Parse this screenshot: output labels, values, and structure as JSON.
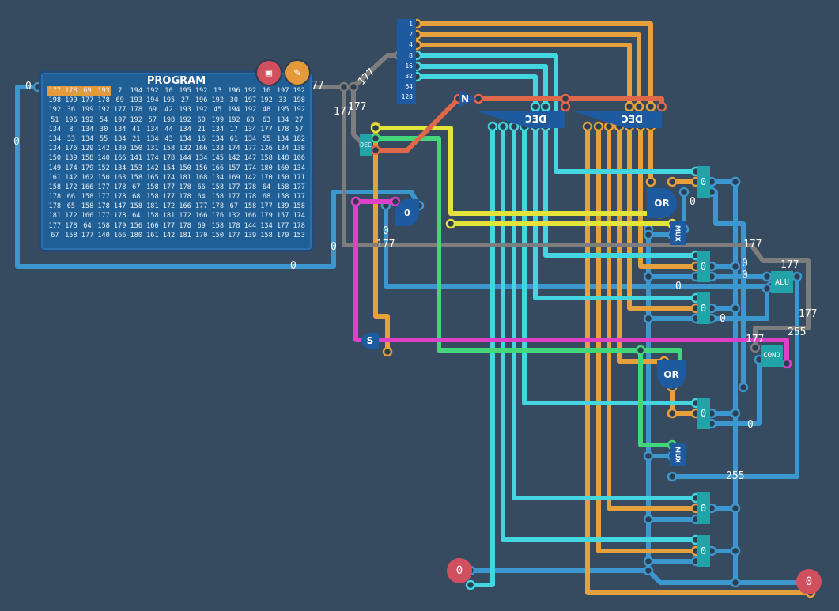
{
  "program": {
    "title": "PROGRAM",
    "highlighted_count": 4,
    "rows": [
      [
        177,
        178,
        69,
        193,
        7,
        194,
        192,
        10,
        195,
        192,
        13,
        196,
        192,
        16,
        197,
        192
      ],
      [
        198,
        199,
        177,
        178,
        69,
        193,
        194,
        195,
        27,
        196,
        192,
        30,
        197,
        192,
        33,
        198
      ],
      [
        192,
        36,
        199,
        192,
        177,
        178,
        69,
        42,
        193,
        192,
        45,
        194,
        192,
        48,
        195,
        192
      ],
      [
        51,
        196,
        192,
        54,
        197,
        192,
        57,
        198,
        192,
        60,
        199,
        192,
        63,
        63,
        134,
        27
      ],
      [
        134,
        8,
        134,
        30,
        134,
        41,
        134,
        44,
        134,
        21,
        134,
        17,
        134,
        177,
        178,
        57
      ],
      [
        134,
        33,
        134,
        55,
        134,
        21,
        134,
        43,
        134,
        16,
        134,
        61,
        134,
        55,
        134,
        182
      ],
      [
        134,
        176,
        129,
        142,
        130,
        150,
        131,
        158,
        132,
        166,
        133,
        174,
        177,
        136,
        134,
        138
      ],
      [
        150,
        139,
        158,
        140,
        166,
        141,
        174,
        178,
        144,
        134,
        145,
        142,
        147,
        158,
        148,
        166
      ],
      [
        149,
        174,
        179,
        152,
        134,
        153,
        142,
        154,
        150,
        156,
        166,
        157,
        174,
        180,
        160,
        134
      ],
      [
        161,
        142,
        162,
        150,
        163,
        158,
        165,
        174,
        181,
        168,
        134,
        169,
        142,
        170,
        150,
        171
      ],
      [
        158,
        172,
        166,
        177,
        178,
        67,
        158,
        177,
        178,
        66,
        158,
        177,
        178,
        64,
        158,
        177
      ],
      [
        178,
        66,
        158,
        177,
        178,
        68,
        158,
        177,
        178,
        64,
        158,
        177,
        178,
        68,
        158,
        177
      ],
      [
        178,
        65,
        158,
        178,
        147,
        158,
        181,
        172,
        166,
        177,
        178,
        67,
        158,
        177,
        139,
        158
      ],
      [
        181,
        172,
        166,
        177,
        178,
        64,
        158,
        181,
        172,
        166,
        176,
        132,
        166,
        179,
        157,
        174
      ],
      [
        177,
        178,
        64,
        158,
        179,
        156,
        166,
        177,
        178,
        69,
        158,
        178,
        144,
        134,
        177,
        178
      ],
      [
        67,
        158,
        177,
        140,
        166,
        180,
        161,
        142,
        181,
        170,
        150,
        177,
        139,
        158,
        179,
        153
      ]
    ],
    "delete_icon": "save-disk-icon",
    "edit_icon": "pencil-icon"
  },
  "splitter": {
    "bits": [
      "1",
      "2",
      "4",
      "8",
      "16",
      "32",
      "64",
      "128"
    ]
  },
  "components": {
    "dec_small": "DEC",
    "dec_left": "DEC",
    "dec_right": "DEC",
    "not_gate": "N",
    "or_top": "OR",
    "or_bottom": "OR",
    "mux_top": "MUX",
    "mux_bottom": "MUX",
    "alu": "ALU",
    "cond": "COND",
    "switch": "S",
    "switch_value": "0",
    "input": "0",
    "output": "0",
    "registers": [
      "0",
      "0",
      "0",
      "0",
      "0",
      "0"
    ]
  },
  "wire_labels": {
    "prog_addr": "0",
    "left_wire": "0",
    "bottom_wire": "0",
    "counter_wire": "0",
    "bus_177_a": "177",
    "bus_177_b": "177",
    "bus_177_c": "177",
    "bus_177_d": "77",
    "bus_177_e": "177",
    "bus_177_f": "177",
    "bus_177_g": "177",
    "bus_177_h": "177",
    "bus_177_i": "177",
    "alu_in": "0",
    "reg_wire_a": "0",
    "reg_wire_b": "0",
    "reg_wire_c": "0",
    "or_out": "0",
    "mux_val": "0",
    "const_255": "255",
    "cond_val": "255",
    "misc_0": "0"
  },
  "colors": {
    "background": "#364a60",
    "byte_wire": "#3d97cf",
    "bit_orange": "#e6a03c",
    "bit_cyan": "#44d6e0",
    "bus_gray": "#7d7d7d",
    "yellow": "#e3e33a",
    "green": "#44d67a",
    "magenta": "#e040c8",
    "red_orange": "#e0684a",
    "component": "#21a3a8",
    "gate": "#1d5aa0"
  }
}
